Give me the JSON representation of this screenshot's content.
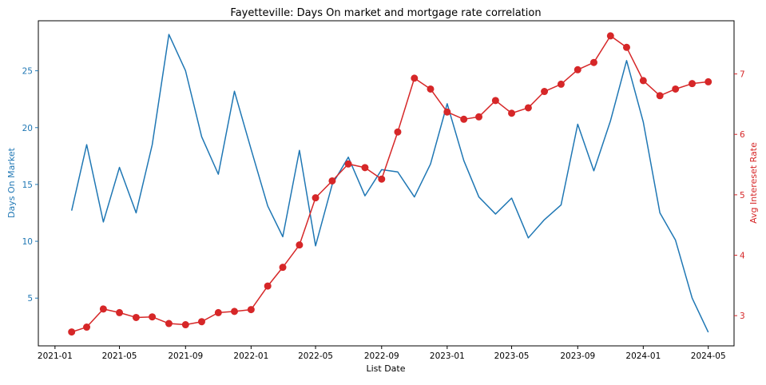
{
  "chart_data": {
    "type": "line",
    "title": "Fayetteville: Days On market and mortgage rate correlation",
    "xlabel": "List Date",
    "y_left_label": "Days On Market",
    "y_right_label": "Avg Intereset Rate",
    "x_ticks": [
      "2021-01",
      "2021-05",
      "2021-09",
      "2022-01",
      "2022-05",
      "2022-09",
      "2023-01",
      "2023-05",
      "2023-09",
      "2024-01",
      "2024-05"
    ],
    "y_left_ticks": [
      5,
      10,
      15,
      20,
      25
    ],
    "y_right_ticks": [
      3,
      4,
      5,
      6,
      7
    ],
    "y_left_range": [
      0.8,
      29.4
    ],
    "y_right_range": [
      2.5,
      7.88
    ],
    "x_range": [
      "2020-12-01",
      "2024-06-18"
    ],
    "grid": false,
    "colors": {
      "days_on_market": "#1f77b4",
      "interest_rate": "#d62728"
    },
    "series": [
      {
        "axis": "left",
        "marker": "none",
        "color": "#1f77b4",
        "x": [
          "2021-02",
          "2021-03",
          "2021-04",
          "2021-05",
          "2021-06",
          "2021-07",
          "2021-08",
          "2021-09",
          "2021-10",
          "2021-11",
          "2021-12",
          "2022-01",
          "2022-02",
          "2022-03",
          "2022-04",
          "2022-05",
          "2022-06",
          "2022-07",
          "2022-08",
          "2022-09",
          "2022-10",
          "2022-11",
          "2022-12",
          "2023-01",
          "2023-02",
          "2023-03",
          "2023-04",
          "2023-05",
          "2023-06",
          "2023-07",
          "2023-08",
          "2023-09",
          "2023-10",
          "2023-11",
          "2023-12",
          "2024-01",
          "2024-02",
          "2024-03",
          "2024-04",
          "2024-05"
        ],
        "values": [
          12.7,
          18.5,
          11.7,
          16.5,
          12.5,
          18.5,
          28.2,
          25.0,
          19.2,
          15.9,
          23.2,
          18.1,
          13.1,
          10.4,
          18.0,
          9.6,
          15.0,
          17.4,
          14.0,
          16.3,
          16.1,
          13.9,
          16.8,
          22.1,
          17.1,
          13.9,
          12.4,
          13.8,
          10.3,
          11.9,
          13.2,
          20.3,
          16.2,
          20.6,
          25.9,
          20.5,
          12.5,
          10.1,
          5.0,
          2.0
        ]
      },
      {
        "axis": "right",
        "marker": "circle",
        "color": "#d62728",
        "x": [
          "2021-02",
          "2021-03",
          "2021-04",
          "2021-05",
          "2021-06",
          "2021-07",
          "2021-08",
          "2021-09",
          "2021-10",
          "2021-11",
          "2021-12",
          "2022-01",
          "2022-02",
          "2022-03",
          "2022-04",
          "2022-05",
          "2022-06",
          "2022-07",
          "2022-08",
          "2022-09",
          "2022-10",
          "2022-11",
          "2022-12",
          "2023-01",
          "2023-02",
          "2023-03",
          "2023-04",
          "2023-05",
          "2023-06",
          "2023-07",
          "2023-08",
          "2023-09",
          "2023-10",
          "2023-11",
          "2023-12",
          "2024-01",
          "2024-02",
          "2024-03",
          "2024-04",
          "2024-05"
        ],
        "values": [
          2.73,
          2.81,
          3.11,
          3.05,
          2.97,
          2.98,
          2.87,
          2.85,
          2.9,
          3.05,
          3.07,
          3.1,
          3.49,
          3.8,
          4.17,
          4.95,
          5.23,
          5.51,
          5.45,
          5.26,
          6.04,
          6.93,
          6.75,
          6.37,
          6.25,
          6.29,
          6.56,
          6.35,
          6.44,
          6.71,
          6.83,
          7.07,
          7.19,
          7.63,
          7.44,
          6.89,
          6.64,
          6.75,
          6.84,
          6.87
        ]
      }
    ]
  }
}
